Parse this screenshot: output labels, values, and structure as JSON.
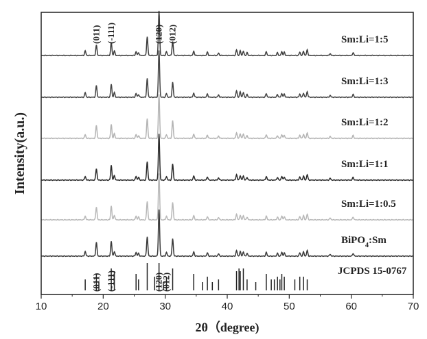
{
  "chart_data": {
    "type": "line",
    "xlabel": "2θ（degree)",
    "ylabel": "Intensity(a.u.)",
    "xlim": [
      10,
      70
    ],
    "x_ticks": [
      "10",
      "20",
      "30",
      "40",
      "50",
      "60",
      "70"
    ],
    "y_ticks": "none",
    "grid": false,
    "legend": "none; each stacked trace labeled at right end",
    "peak_positions": [
      17.1,
      18.9,
      21.3,
      21.8,
      25.3,
      25.7,
      27.1,
      29.0,
      30.2,
      31.2,
      34.6,
      36.8,
      38.6,
      41.5,
      42.1,
      42.6,
      43.2,
      46.3,
      48.1,
      48.8,
      49.2,
      51.7,
      52.3,
      52.9,
      56.6,
      60.3
    ],
    "series": [
      {
        "name": "Sm:Li=1:5",
        "color": "#3d3d3d",
        "intensities": [
          10,
          22,
          28,
          10,
          8,
          6,
          40,
          95,
          8,
          30,
          9,
          7,
          5,
          12,
          10,
          9,
          6,
          8,
          6,
          8,
          7,
          7,
          9,
          12,
          4,
          6
        ]
      },
      {
        "name": "Sm:Li=1:3",
        "color": "#444444",
        "intensities": [
          10,
          25,
          28,
          10,
          8,
          6,
          40,
          100,
          8,
          32,
          9,
          7,
          5,
          14,
          12,
          10,
          6,
          8,
          6,
          8,
          7,
          7,
          9,
          12,
          4,
          6
        ]
      },
      {
        "name": "Sm:Li=1:2",
        "color": "#b4b4b4",
        "intensities": [
          8,
          28,
          30,
          10,
          8,
          6,
          42,
          95,
          8,
          38,
          9,
          7,
          5,
          12,
          10,
          9,
          6,
          8,
          6,
          8,
          7,
          7,
          9,
          12,
          4,
          6
        ]
      },
      {
        "name": "Sm:Li=1:1",
        "color": "#2a2a2a",
        "intensities": [
          8,
          25,
          32,
          10,
          8,
          6,
          40,
          100,
          8,
          35,
          9,
          7,
          5,
          12,
          10,
          9,
          6,
          8,
          6,
          8,
          7,
          7,
          9,
          12,
          4,
          6
        ]
      },
      {
        "name": "Sm:Li=1:0.5",
        "color": "#b8b8b8",
        "intensities": [
          8,
          28,
          30,
          10,
          8,
          6,
          40,
          100,
          8,
          38,
          9,
          7,
          5,
          12,
          10,
          9,
          6,
          8,
          6,
          8,
          7,
          7,
          9,
          12,
          4,
          6
        ]
      },
      {
        "name": "BiPO4:Sm",
        "color": "#3a3a3a",
        "intensities": [
          10,
          30,
          32,
          10,
          8,
          6,
          42,
          100,
          8,
          38,
          9,
          7,
          5,
          12,
          10,
          9,
          6,
          8,
          6,
          8,
          7,
          7,
          9,
          12,
          4,
          6
        ]
      }
    ],
    "reference": {
      "name": "JCPDS 15-0767",
      "positions": [
        17.1,
        18.9,
        19.3,
        21.3,
        21.8,
        25.3,
        25.7,
        27.1,
        28.3,
        29.0,
        29.7,
        30.2,
        31.2,
        34.6,
        36.0,
        36.8,
        37.6,
        38.6,
        41.5,
        41.9,
        42.1,
        42.6,
        43.2,
        44.6,
        46.3,
        47.1,
        47.6,
        48.1,
        48.5,
        48.8,
        49.2,
        50.9,
        51.7,
        52.3,
        52.9
      ],
      "heights": [
        0.4,
        0.6,
        0.3,
        0.8,
        0.7,
        0.6,
        0.4,
        1.0,
        0.5,
        1.0,
        0.3,
        0.5,
        0.8,
        0.6,
        0.3,
        0.5,
        0.3,
        0.4,
        0.7,
        0.8,
        0.7,
        0.8,
        0.4,
        0.3,
        0.6,
        0.4,
        0.4,
        0.5,
        0.4,
        0.6,
        0.5,
        0.4,
        0.5,
        0.5,
        0.4
      ]
    },
    "annotations": {
      "top": [
        {
          "text": "(011)",
          "x": 18.9
        },
        {
          "text": "(-111)",
          "x": 21.3
        },
        {
          "text": "(120)",
          "x": 29.0
        },
        {
          "text": "(012)",
          "x": 31.2
        }
      ],
      "bottom": [
        {
          "text": "(011)",
          "x": 18.9
        },
        {
          "text": "(-111)",
          "x": 21.3
        },
        {
          "text": "(120)",
          "x": 29.0
        },
        {
          "text": "(012)",
          "x": 30.2
        }
      ]
    }
  }
}
